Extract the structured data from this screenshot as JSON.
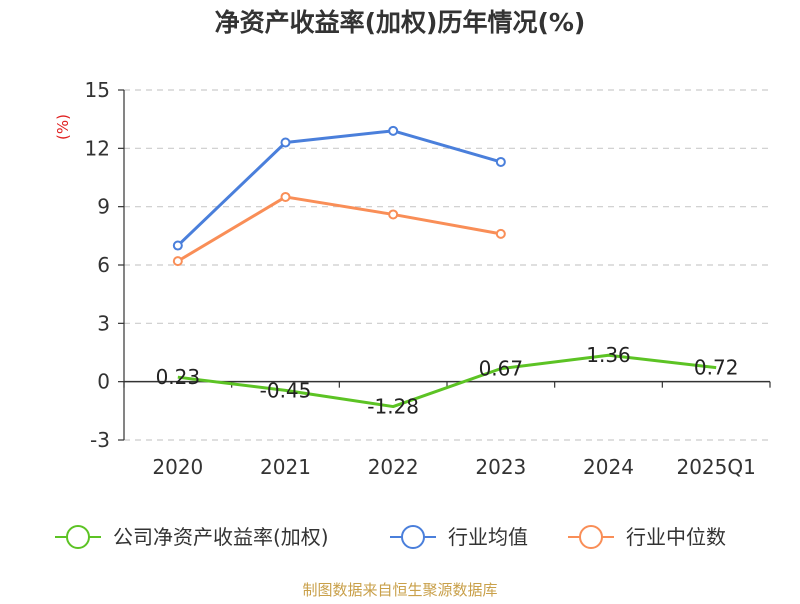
{
  "chart_data": {
    "type": "line",
    "title": "净资产收益率(加权)历年情况(%)",
    "ylabel": "(%)",
    "xlabel": "",
    "categories": [
      "2020",
      "2021",
      "2022",
      "2023",
      "2024",
      "2025Q1"
    ],
    "ylim": [
      -3,
      15
    ],
    "yticks": [
      -3,
      0,
      3,
      6,
      9,
      12,
      15
    ],
    "grid": true,
    "legend_position": "bottom",
    "series": [
      {
        "name": "公司净资产收益率(加权)",
        "color": "#5cc324",
        "values": [
          0.23,
          -0.45,
          -1.28,
          0.67,
          1.36,
          0.72
        ],
        "labels": [
          "0.23",
          "-0.45",
          "-1.28",
          "0.67",
          "1.36",
          "0.72"
        ]
      },
      {
        "name": "行业均值",
        "color": "#4a7fdb",
        "values": [
          7.0,
          12.3,
          12.9,
          11.3,
          null,
          null
        ]
      },
      {
        "name": "行业中位数",
        "color": "#f98e57",
        "values": [
          6.2,
          9.5,
          8.6,
          7.6,
          null,
          null
        ]
      }
    ],
    "source": "制图数据来自恒生聚源数据库"
  }
}
